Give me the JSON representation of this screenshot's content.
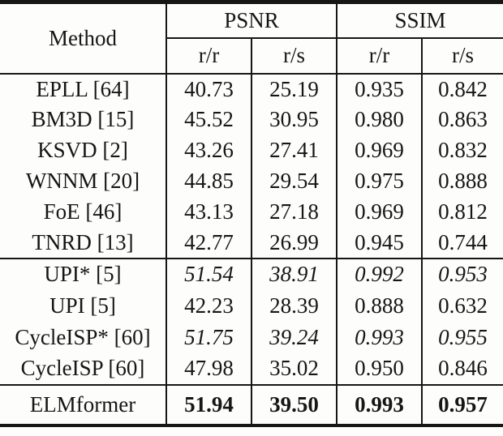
{
  "colors": {
    "text": "#161616",
    "rule": "#161616",
    "background": "#fdfdfc"
  },
  "table": {
    "header": {
      "method_label": "Method",
      "group_psnr": "PSNR",
      "group_ssim": "SSIM",
      "sub_psnr_rr": "r/r",
      "sub_psnr_rs": "r/s",
      "sub_ssim_rr": "r/r",
      "sub_ssim_rs": "r/s"
    },
    "classical_rows": [
      {
        "method": "EPLL [64]",
        "psnr_rr": "40.73",
        "psnr_rs": "25.19",
        "ssim_rr": "0.935",
        "ssim_rs": "0.842",
        "emphasis": "none"
      },
      {
        "method": "BM3D [15]",
        "psnr_rr": "45.52",
        "psnr_rs": "30.95",
        "ssim_rr": "0.980",
        "ssim_rs": "0.863",
        "emphasis": "none"
      },
      {
        "method": "KSVD [2]",
        "psnr_rr": "43.26",
        "psnr_rs": "27.41",
        "ssim_rr": "0.969",
        "ssim_rs": "0.832",
        "emphasis": "none"
      },
      {
        "method": "WNNM [20]",
        "psnr_rr": "44.85",
        "psnr_rs": "29.54",
        "ssim_rr": "0.975",
        "ssim_rs": "0.888",
        "emphasis": "none"
      },
      {
        "method": "FoE [46]",
        "psnr_rr": "43.13",
        "psnr_rs": "27.18",
        "ssim_rr": "0.969",
        "ssim_rs": "0.812",
        "emphasis": "none"
      },
      {
        "method": "TNRD [13]",
        "psnr_rr": "42.77",
        "psnr_rs": "26.99",
        "ssim_rr": "0.945",
        "ssim_rs": "0.744",
        "emphasis": "none"
      }
    ],
    "learning_rows": [
      {
        "method": "UPI* [5]",
        "psnr_rr": "51.54",
        "psnr_rs": "38.91",
        "ssim_rr": "0.992",
        "ssim_rs": "0.953",
        "emphasis": "italic"
      },
      {
        "method": "UPI [5]",
        "psnr_rr": "42.23",
        "psnr_rs": "28.39",
        "ssim_rr": "0.888",
        "ssim_rs": "0.632",
        "emphasis": "none"
      },
      {
        "method": "CycleISP* [60]",
        "psnr_rr": "51.75",
        "psnr_rs": "39.24",
        "ssim_rr": "0.993",
        "ssim_rs": "0.955",
        "emphasis": "italic"
      },
      {
        "method": "CycleISP [60]",
        "psnr_rr": "47.98",
        "psnr_rs": "35.02",
        "ssim_rr": "0.950",
        "ssim_rs": "0.846",
        "emphasis": "none"
      }
    ],
    "ours_row": {
      "method": "ELMformer",
      "psnr_rr": "51.94",
      "psnr_rs": "39.50",
      "ssim_rr": "0.993",
      "ssim_rs": "0.957",
      "emphasis": "bold"
    }
  }
}
